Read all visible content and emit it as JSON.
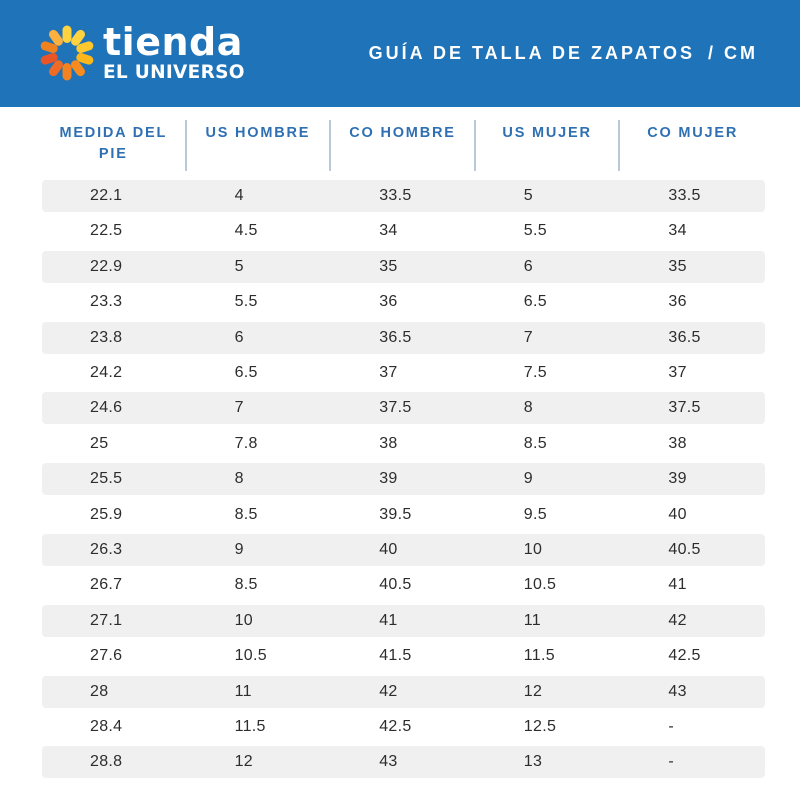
{
  "brand": {
    "name_line1": "tienda",
    "name_line2": "EL UNIVERSO",
    "logo_icon": "sun-burst-icon",
    "petal_colors": [
      "#FFD23F",
      "#FFD23F",
      "#FFC82E",
      "#FDB71A",
      "#F68B1F",
      "#F58220",
      "#EF6A25",
      "#E95527",
      "#F0811F",
      "#FBB040"
    ]
  },
  "header": {
    "title": "GUÍA DE TALLA DE ZAPATOS",
    "title_unit": "/ CM",
    "background_color": "#1E73B9",
    "text_color": "#FFFFFF"
  },
  "colors": {
    "column_header_text": "#2E70B2",
    "divider": "#B9C9DA",
    "row_stripe": "#F0F0F0",
    "cell_text": "#2D2D2D"
  },
  "chart_data": {
    "type": "table",
    "title": "GUÍA DE TALLA DE ZAPATOS / CM",
    "columns": [
      "MEDIDA DEL PIE",
      "US HOMBRE",
      "CO HOMBRE",
      "US MUJER",
      "CO MUJER"
    ],
    "rows": [
      [
        "22.1",
        "4",
        "33.5",
        "5",
        "33.5"
      ],
      [
        "22.5",
        "4.5",
        "34",
        "5.5",
        "34"
      ],
      [
        "22.9",
        "5",
        "35",
        "6",
        "35"
      ],
      [
        "23.3",
        "5.5",
        "36",
        "6.5",
        "36"
      ],
      [
        "23.8",
        "6",
        "36.5",
        "7",
        "36.5"
      ],
      [
        "24.2",
        "6.5",
        "37",
        "7.5",
        "37"
      ],
      [
        "24.6",
        "7",
        "37.5",
        "8",
        "37.5"
      ],
      [
        "25",
        "7.8",
        "38",
        "8.5",
        "38"
      ],
      [
        "25.5",
        "8",
        "39",
        "9",
        "39"
      ],
      [
        "25.9",
        "8.5",
        "39.5",
        "9.5",
        "40"
      ],
      [
        "26.3",
        "9",
        "40",
        "10",
        "40.5"
      ],
      [
        "26.7",
        "8.5",
        "40.5",
        "10.5",
        "41"
      ],
      [
        "27.1",
        "10",
        "41",
        "11",
        "42"
      ],
      [
        "27.6",
        "10.5",
        "41.5",
        "11.5",
        "42.5"
      ],
      [
        "28",
        "11",
        "42",
        "12",
        "43"
      ],
      [
        "28.4",
        "11.5",
        "42.5",
        "12.5",
        "-"
      ],
      [
        "28.8",
        "12",
        "43",
        "13",
        "-"
      ]
    ],
    "layout": {
      "striped_rows": "odd",
      "value_alignment": "left",
      "header_alignment": "center"
    }
  }
}
